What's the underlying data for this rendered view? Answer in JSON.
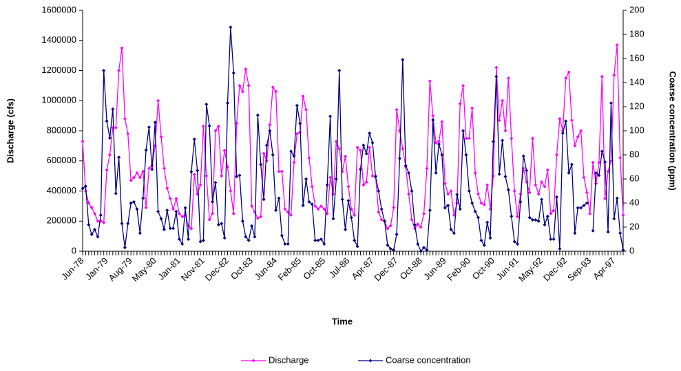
{
  "chart_data": {
    "type": "line",
    "y_label": "Discharge (cfs)",
    "y2_label": "Coarse concentration (ppm)",
    "x_label": "Time",
    "categories": [
      "Jun-78",
      null,
      null,
      null,
      null,
      null,
      null,
      null,
      "Jan-79",
      null,
      null,
      null,
      null,
      null,
      null,
      null,
      "Aug-79",
      null,
      null,
      null,
      null,
      null,
      null,
      null,
      "May-80",
      null,
      null,
      null,
      null,
      null,
      null,
      null,
      "Jan-81",
      null,
      null,
      null,
      null,
      null,
      null,
      null,
      "Nov-81",
      null,
      null,
      null,
      null,
      null,
      null,
      null,
      "Dec-82",
      null,
      null,
      null,
      null,
      null,
      null,
      null,
      "Oct-83",
      null,
      null,
      null,
      null,
      null,
      null,
      null,
      "Jun-84",
      null,
      null,
      null,
      null,
      null,
      null,
      null,
      "Feb-85",
      null,
      null,
      null,
      null,
      null,
      null,
      null,
      "Oct-85",
      null,
      null,
      null,
      null,
      null,
      null,
      null,
      "Jul-86",
      null,
      null,
      null,
      null,
      null,
      null,
      null,
      "Apr-87",
      null,
      null,
      null,
      null,
      null,
      null,
      null,
      "Dec-87",
      null,
      null,
      null,
      null,
      null,
      null,
      null,
      "Oct-88",
      null,
      null,
      null,
      null,
      null,
      null,
      null,
      "Jun-89",
      null,
      null,
      null,
      null,
      null,
      null,
      null,
      "Feb-90",
      null,
      null,
      null,
      null,
      null,
      null,
      null,
      "Oct-90",
      null,
      null,
      null,
      null,
      null,
      null,
      null,
      "Jun-91",
      null,
      null,
      null,
      null,
      null,
      null,
      null,
      "May-92",
      null,
      null,
      null,
      null,
      null,
      null,
      null,
      "Dec-92",
      null,
      null,
      null,
      null,
      null,
      null,
      null,
      "Sep-93",
      null,
      null,
      null,
      null,
      null,
      null,
      null,
      "Apr-97",
      null,
      null,
      null
    ],
    "series": [
      {
        "name": "Discharge",
        "color": "#ff00ff",
        "axis": "y",
        "values": [
          730000,
          400000,
          320000,
          290000,
          250000,
          200000,
          200000,
          190000,
          540000,
          640000,
          820000,
          820000,
          1200000,
          1350000,
          880000,
          780000,
          470000,
          490000,
          520000,
          490000,
          530000,
          290000,
          550000,
          570000,
          700000,
          1000000,
          760000,
          550000,
          420000,
          350000,
          280000,
          350000,
          250000,
          230000,
          240000,
          170000,
          150000,
          510000,
          380000,
          440000,
          830000,
          500000,
          210000,
          250000,
          800000,
          830000,
          500000,
          670000,
          560000,
          400000,
          250000,
          850000,
          1100000,
          1060000,
          1210000,
          1100000,
          300000,
          260000,
          220000,
          230000,
          650000,
          600000,
          840000,
          1090000,
          1060000,
          530000,
          530000,
          280000,
          260000,
          240000,
          590000,
          780000,
          790000,
          1030000,
          940000,
          620000,
          430000,
          300000,
          280000,
          300000,
          280000,
          250000,
          490000,
          380000,
          730000,
          680000,
          530000,
          630000,
          430000,
          280000,
          240000,
          690000,
          670000,
          440000,
          460000,
          690000,
          500000,
          500000,
          260000,
          210000,
          200000,
          150000,
          170000,
          290000,
          940000,
          800000,
          680000,
          560000,
          380000,
          210000,
          150000,
          180000,
          160000,
          250000,
          550000,
          1130000,
          900000,
          720000,
          730000,
          860000,
          450000,
          380000,
          400000,
          240000,
          320000,
          980000,
          1100000,
          750000,
          750000,
          950000,
          520000,
          380000,
          320000,
          310000,
          440000,
          280000,
          500000,
          1220000,
          870000,
          1000000,
          800000,
          1150000,
          750000,
          400000,
          230000,
          380000,
          550000,
          460000,
          390000,
          750000,
          440000,
          380000,
          460000,
          430000,
          540000,
          250000,
          270000,
          640000,
          880000,
          800000,
          1150000,
          1190000,
          870000,
          700000,
          760000,
          800000,
          490000,
          390000,
          250000,
          590000,
          450000,
          590000,
          1160000,
          350000,
          530000,
          600000,
          1170000,
          1370000,
          620000,
          240000
        ]
      },
      {
        "name": "Coarse concentration",
        "color": "#000080",
        "axis": "y2",
        "values": [
          52,
          54,
          22,
          14,
          18,
          12,
          30,
          150,
          108,
          94,
          118,
          48,
          78,
          23,
          3,
          23,
          40,
          41,
          35,
          15,
          44,
          84,
          103,
          68,
          107,
          33,
          27,
          18,
          34,
          19,
          19,
          33,
          10,
          6,
          36,
          10,
          66,
          93,
          67,
          8,
          9,
          122,
          104,
          41,
          57,
          22,
          23,
          11,
          123,
          186,
          148,
          62,
          63,
          25,
          12,
          9,
          21,
          12,
          113,
          72,
          43,
          88,
          100,
          80,
          34,
          44,
          13,
          6,
          6,
          83,
          79,
          121,
          106,
          38,
          60,
          41,
          39,
          9,
          9,
          10,
          6,
          55,
          112,
          27,
          60,
          150,
          43,
          18,
          42,
          28,
          9,
          4,
          68,
          88,
          81,
          98,
          90,
          62,
          50,
          35,
          25,
          5,
          2,
          1,
          14,
          77,
          159,
          71,
          65,
          50,
          22,
          6,
          0,
          3,
          1,
          34,
          109,
          65,
          89,
          80,
          36,
          38,
          18,
          15,
          47,
          35,
          100,
          80,
          50,
          40,
          33,
          28,
          9,
          5,
          24,
          11,
          91,
          145,
          64,
          92,
          62,
          51,
          29,
          8,
          6,
          41,
          79,
          67,
          28,
          26,
          26,
          25,
          43,
          22,
          29,
          10,
          10,
          45,
          2,
          98,
          108,
          65,
          72,
          15,
          36,
          36,
          38,
          40,
          null,
          17,
          65,
          63,
          83,
          74,
          16,
          123,
          27,
          44,
          15,
          1
        ]
      }
    ],
    "ylim": [
      0,
      1600000
    ],
    "yticks": [
      0,
      200000,
      400000,
      600000,
      800000,
      1000000,
      1200000,
      1400000,
      1600000
    ],
    "y2lim": [
      0,
      200
    ],
    "y2ticks": [
      0,
      20,
      40,
      60,
      80,
      100,
      120,
      140,
      160,
      180,
      200
    ],
    "grid": false,
    "legend": "bottom"
  }
}
